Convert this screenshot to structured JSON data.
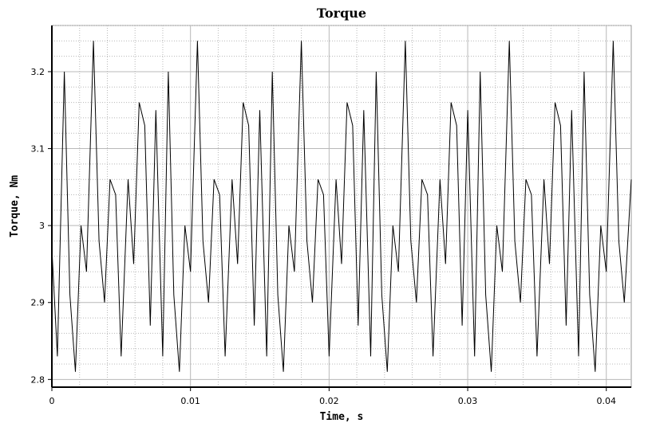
{
  "chart_data": {
    "type": "line",
    "title": "Torque",
    "xlabel": "Time, s",
    "ylabel": "Torque, Nm",
    "xlim": [
      0,
      0.0418
    ],
    "ylim": [
      2.79,
      3.26
    ],
    "grid": true,
    "xticks": [
      0,
      0.01,
      0.02,
      0.03,
      0.04
    ],
    "xtick_labels": [
      "0",
      "0.01",
      "0.02",
      "0.03",
      "0.04"
    ],
    "yticks": [
      2.8,
      2.9,
      3.0,
      3.1,
      3.2
    ],
    "ytick_labels": [
      "2.8",
      "2.9",
      "3",
      "3.1",
      "3.2"
    ],
    "colors": {
      "line": "#000000",
      "grid": "#b8b8b8",
      "axis": "#000000",
      "frame": "#9a9a9a"
    },
    "series": [
      {
        "x": [
          0,
          0.0004,
          0.0009,
          0.0013,
          0.0017,
          0.0021,
          0.0025,
          0.003,
          0.0034,
          0.0038,
          0.0042,
          0.0046,
          0.005,
          0.0055,
          0.0059,
          0.0063,
          0.0067,
          0.0071,
          0.0075,
          0.008,
          0.0084,
          0.0088,
          0.0092,
          0.0096,
          0.01,
          0.0105,
          0.0109,
          0.0113,
          0.0117,
          0.0121,
          0.0125,
          0.013,
          0.0134,
          0.0138,
          0.0142,
          0.0146,
          0.015,
          0.0155,
          0.0159,
          0.0163,
          0.0167,
          0.0171,
          0.0175,
          0.018,
          0.0184,
          0.0188,
          0.0192,
          0.0196,
          0.02,
          0.0205,
          0.0209,
          0.0213,
          0.0217,
          0.0221,
          0.0225,
          0.023,
          0.0234,
          0.0238,
          0.0242,
          0.0246,
          0.025,
          0.0255,
          0.0259,
          0.0263,
          0.0267,
          0.0271,
          0.0275,
          0.028,
          0.0284,
          0.0288,
          0.0292,
          0.0296,
          0.03,
          0.0305,
          0.0309,
          0.0313,
          0.0317,
          0.0321,
          0.0325,
          0.033,
          0.0334,
          0.0338,
          0.0342,
          0.0346,
          0.035,
          0.0355,
          0.0359,
          0.0363,
          0.0367,
          0.0371,
          0.0375,
          0.038,
          0.0384,
          0.0388,
          0.0392,
          0.0396,
          0.04,
          0.0405,
          0.0409,
          0.0413,
          0.0418
        ],
        "y": [
          2.97,
          2.83,
          3.2,
          2.91,
          2.81,
          3.0,
          2.94,
          3.24,
          2.98,
          2.9,
          3.06,
          3.04,
          2.83,
          3.06,
          2.95,
          3.16,
          3.13,
          2.87,
          3.15,
          2.83,
          3.2,
          2.91,
          2.81,
          3.0,
          2.94,
          3.24,
          2.98,
          2.9,
          3.06,
          3.04,
          2.83,
          3.06,
          2.95,
          3.16,
          3.13,
          2.87,
          3.15,
          2.83,
          3.2,
          2.91,
          2.81,
          3.0,
          2.94,
          3.24,
          2.98,
          2.9,
          3.06,
          3.04,
          2.83,
          3.06,
          2.95,
          3.16,
          3.13,
          2.87,
          3.15,
          2.83,
          3.2,
          2.91,
          2.81,
          3.0,
          2.94,
          3.24,
          2.98,
          2.9,
          3.06,
          3.04,
          2.83,
          3.06,
          2.95,
          3.16,
          3.13,
          2.87,
          3.15,
          2.83,
          3.2,
          2.91,
          2.81,
          3.0,
          2.94,
          3.24,
          2.98,
          2.9,
          3.06,
          3.04,
          2.83,
          3.06,
          2.95,
          3.16,
          3.13,
          2.87,
          3.15,
          2.83,
          3.2,
          2.91,
          2.81,
          3.0,
          2.94,
          3.24,
          2.98,
          2.9,
          3.06
        ]
      }
    ]
  }
}
